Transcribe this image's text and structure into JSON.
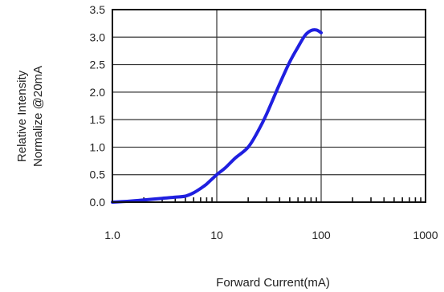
{
  "chart_data": {
    "type": "line",
    "xscale": "log",
    "xlim": [
      1,
      1000
    ],
    "ylim": [
      0,
      3.5
    ],
    "grid": true,
    "xlabel": "Forward Current(mA)",
    "ylabel_lines": [
      "Relative Intensity",
      "Normalize @20mA"
    ],
    "x_ticks": [
      {
        "value": 1,
        "label": "1.0"
      },
      {
        "value": 10,
        "label": "10"
      },
      {
        "value": 100,
        "label": "100"
      },
      {
        "value": 1000,
        "label": "1000"
      }
    ],
    "y_ticks": [
      {
        "value": 0,
        "label": "0.0"
      },
      {
        "value": 0.5,
        "label": "0.5"
      },
      {
        "value": 1.0,
        "label": "1.0"
      },
      {
        "value": 1.5,
        "label": "1.5"
      },
      {
        "value": 2.0,
        "label": "2.0"
      },
      {
        "value": 2.5,
        "label": "2.5"
      },
      {
        "value": 3.0,
        "label": "3.0"
      },
      {
        "value": 3.5,
        "label": "3.5"
      }
    ],
    "series": [
      {
        "color": "#1f1fe0",
        "x": [
          1,
          1.5,
          2,
          3,
          4,
          5,
          6,
          7,
          8,
          10,
          12,
          15,
          20,
          25,
          30,
          40,
          50,
          60,
          70,
          80,
          90,
          100
        ],
        "y": [
          0.0,
          0.02,
          0.04,
          0.07,
          0.09,
          0.11,
          0.17,
          0.25,
          0.33,
          0.5,
          0.62,
          0.8,
          1.0,
          1.3,
          1.6,
          2.15,
          2.55,
          2.82,
          3.03,
          3.12,
          3.13,
          3.08
        ]
      }
    ]
  }
}
